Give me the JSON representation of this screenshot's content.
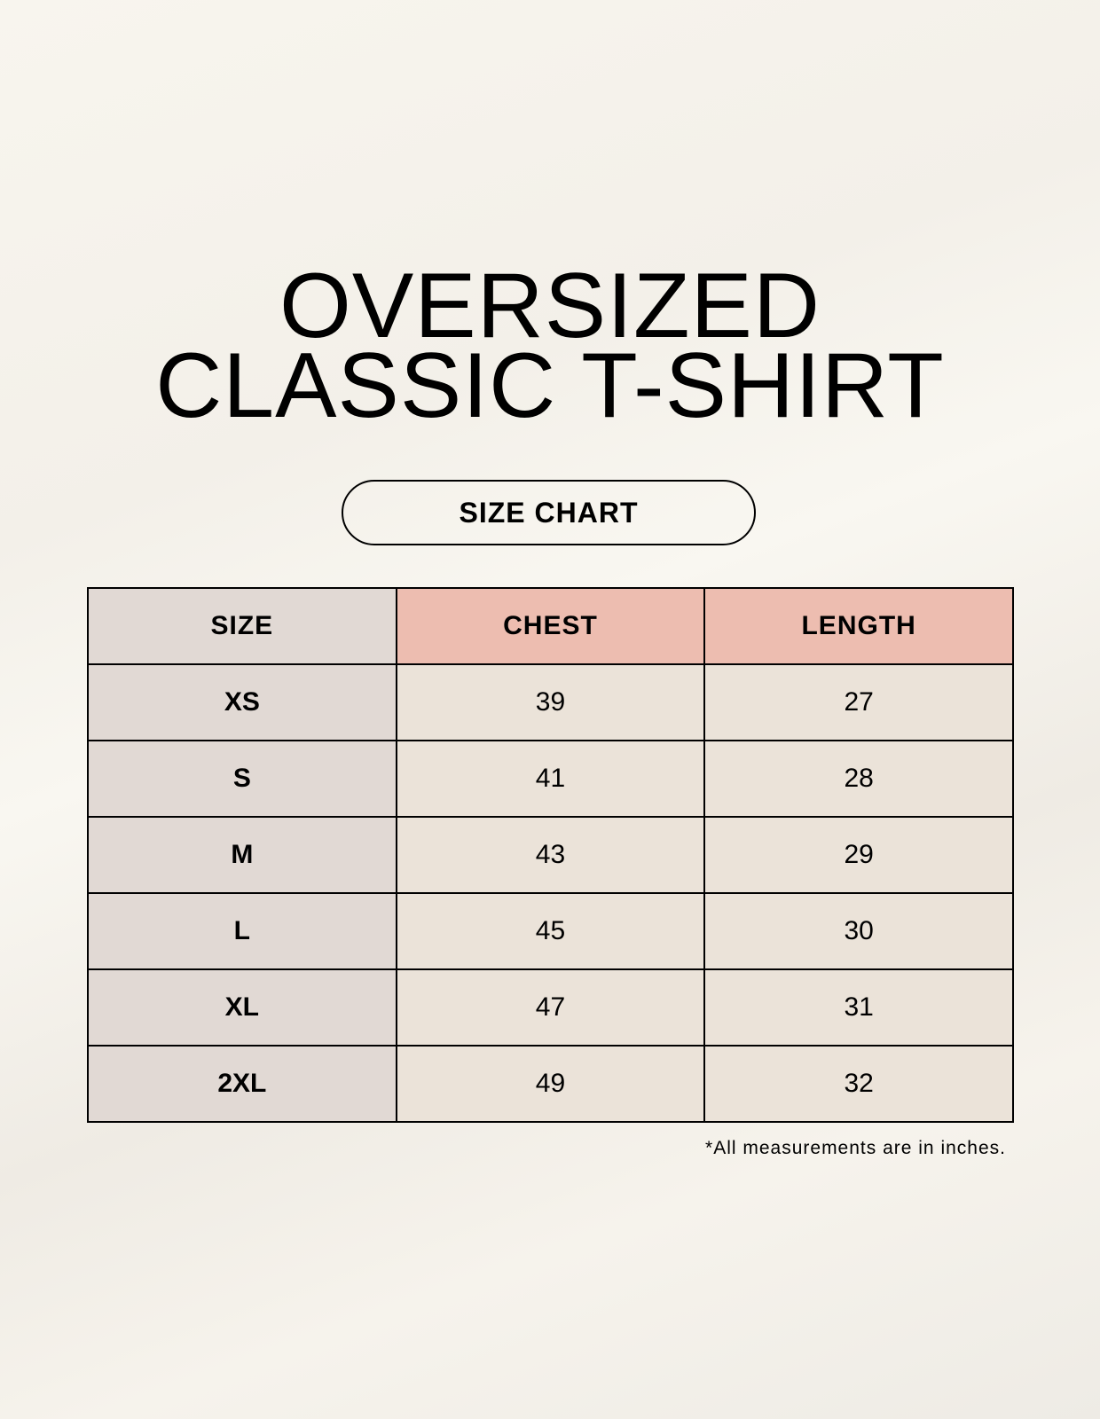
{
  "title": {
    "line1": "OVERSIZED",
    "line2": "CLASSIC T-SHIRT"
  },
  "badge": "SIZE CHART",
  "table": {
    "headers": [
      "SIZE",
      "CHEST",
      "LENGTH"
    ],
    "rows": [
      [
        "XS",
        "39",
        "27"
      ],
      [
        "S",
        "41",
        "28"
      ],
      [
        "M",
        "43",
        "29"
      ],
      [
        "L",
        "45",
        "30"
      ],
      [
        "XL",
        "47",
        "31"
      ],
      [
        "2XL",
        "49",
        "32"
      ]
    ]
  },
  "note": "*All measurements are in inches.",
  "colors": {
    "size_column": "#e1d9d4",
    "header_accent": "#edbdb0",
    "cell": "#ebe3d9"
  }
}
